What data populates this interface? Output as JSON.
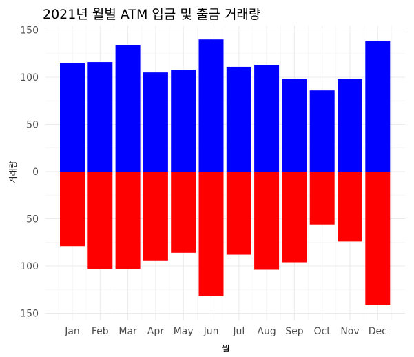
{
  "chart_data": {
    "type": "bar",
    "title": "2021년 월별 ATM 입금 및 출금 거래량",
    "xlabel": "월",
    "ylabel": "거래량",
    "categories": [
      "Jan",
      "Feb",
      "Mar",
      "Apr",
      "May",
      "Jun",
      "Jul",
      "Aug",
      "Sep",
      "Oct",
      "Nov",
      "Dec"
    ],
    "series": [
      {
        "color": "#0000ff",
        "direction": "up",
        "values": [
          115,
          116,
          134,
          105,
          108,
          140,
          111,
          113,
          98,
          86,
          98,
          138
        ]
      },
      {
        "color": "#ff0000",
        "direction": "down",
        "values": [
          79,
          103,
          103,
          94,
          86,
          132,
          88,
          104,
          96,
          56,
          74,
          141
        ]
      }
    ],
    "yticks": [
      150,
      100,
      50,
      0,
      50,
      100,
      150
    ],
    "ylim": [
      -155,
      155
    ],
    "grid": true,
    "legend": "none"
  }
}
